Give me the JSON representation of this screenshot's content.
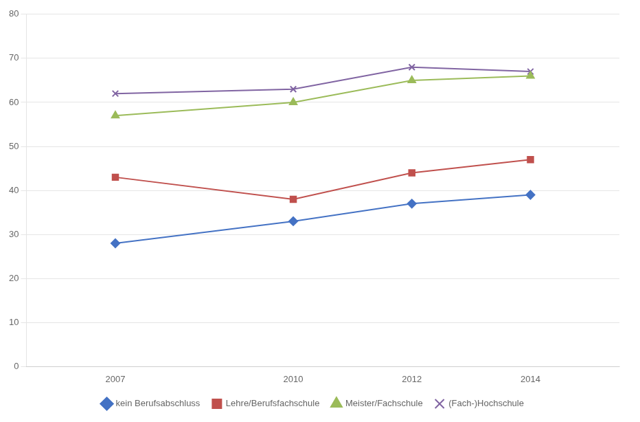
{
  "chart_data": {
    "type": "line",
    "x": [
      2007,
      2010,
      2012,
      2014
    ],
    "series": [
      {
        "name": "kein Berufsabschluss",
        "color": "#4472C4",
        "marker": "diamond",
        "values": [
          28,
          33,
          37,
          39
        ]
      },
      {
        "name": "Lehre/Berufsfachschule",
        "color": "#C0504D",
        "marker": "square",
        "values": [
          43,
          38,
          44,
          47
        ]
      },
      {
        "name": "Meister/Fachschule",
        "color": "#9BBB59",
        "marker": "triangle",
        "values": [
          57,
          60,
          65,
          66
        ]
      },
      {
        "name": "(Fach-)Hochschule",
        "color": "#8064A2",
        "marker": "x",
        "values": [
          62,
          63,
          68,
          67
        ]
      }
    ],
    "xlim": [
      2005.5,
      2015.5
    ],
    "xticks": [
      2007,
      2010,
      2012,
      2014
    ],
    "ylim": [
      0,
      80
    ],
    "yticks": [
      0,
      10,
      20,
      30,
      40,
      50,
      60,
      70,
      80
    ],
    "grid": true,
    "legend": "bottom"
  }
}
